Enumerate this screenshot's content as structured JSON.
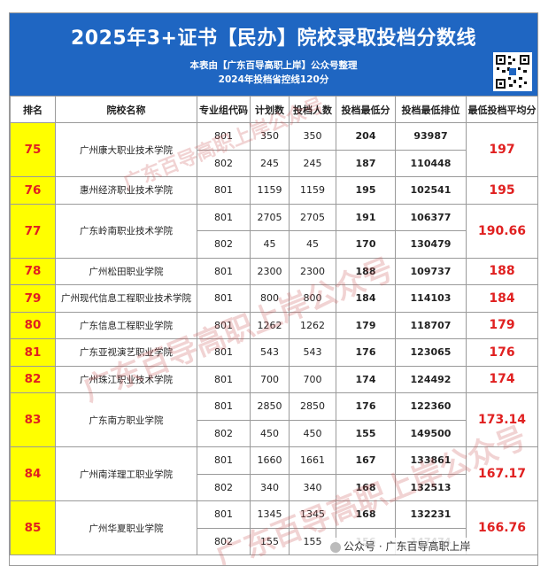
{
  "header": {
    "title": "2025年3+证书【民办】院校录取投档分数线",
    "subtitle": "本表由【广东百导高职上岸】公众号整理",
    "line2": "2024年投档省控线120分"
  },
  "columns": [
    "排名",
    "院校名称",
    "专业组代码",
    "计划数",
    "投档人数",
    "投档最低分",
    "投档最低排位",
    "最低投档平均分"
  ],
  "rows": [
    {
      "rank": "75",
      "school": "广州康大职业技术学院",
      "avg": "197",
      "groups": [
        {
          "code": "801",
          "plan": "350",
          "enrolled": "350",
          "min_score": "204",
          "min_rank": "93987"
        },
        {
          "code": "802",
          "plan": "245",
          "enrolled": "245",
          "min_score": "187",
          "min_rank": "110448"
        }
      ]
    },
    {
      "rank": "76",
      "school": "惠州经济职业技术学院",
      "avg": "195",
      "groups": [
        {
          "code": "801",
          "plan": "1159",
          "enrolled": "1159",
          "min_score": "195",
          "min_rank": "102541"
        }
      ]
    },
    {
      "rank": "77",
      "school": "广东岭南职业技术学院",
      "avg": "190.66",
      "groups": [
        {
          "code": "801",
          "plan": "2705",
          "enrolled": "2705",
          "min_score": "191",
          "min_rank": "106377"
        },
        {
          "code": "802",
          "plan": "45",
          "enrolled": "45",
          "min_score": "170",
          "min_rank": "130479"
        }
      ]
    },
    {
      "rank": "78",
      "school": "广州松田职业学院",
      "avg": "188",
      "groups": [
        {
          "code": "801",
          "plan": "2300",
          "enrolled": "2300",
          "min_score": "188",
          "min_rank": "109737"
        }
      ]
    },
    {
      "rank": "79",
      "school": "广州现代信息工程职业技术学院",
      "avg": "184",
      "groups": [
        {
          "code": "801",
          "plan": "800",
          "enrolled": "800",
          "min_score": "184",
          "min_rank": "114103"
        }
      ]
    },
    {
      "rank": "80",
      "school": "广东信息工程职业学院",
      "avg": "179",
      "groups": [
        {
          "code": "801",
          "plan": "1262",
          "enrolled": "1262",
          "min_score": "179",
          "min_rank": "118707"
        }
      ]
    },
    {
      "rank": "81",
      "school": "广东亚视演艺职业学院",
      "avg": "176",
      "groups": [
        {
          "code": "801",
          "plan": "543",
          "enrolled": "543",
          "min_score": "176",
          "min_rank": "123065"
        }
      ]
    },
    {
      "rank": "82",
      "school": "广州珠江职业技术学院",
      "avg": "174",
      "groups": [
        {
          "code": "801",
          "plan": "700",
          "enrolled": "700",
          "min_score": "174",
          "min_rank": "124492"
        }
      ]
    },
    {
      "rank": "83",
      "school": "广东南方职业学院",
      "avg": "173.14",
      "groups": [
        {
          "code": "801",
          "plan": "2850",
          "enrolled": "2850",
          "min_score": "176",
          "min_rank": "122360"
        },
        {
          "code": "802",
          "plan": "450",
          "enrolled": "450",
          "min_score": "155",
          "min_rank": "149500"
        }
      ]
    },
    {
      "rank": "84",
      "school": "广州南洋理工职业学院",
      "avg": "167.17",
      "groups": [
        {
          "code": "801",
          "plan": "1660",
          "enrolled": "1661",
          "min_score": "167",
          "min_rank": "133861"
        },
        {
          "code": "802",
          "plan": "340",
          "enrolled": "340",
          "min_score": "168",
          "min_rank": "132513"
        }
      ]
    },
    {
      "rank": "85",
      "school": "广州华夏职业学院",
      "avg": "166.76",
      "groups": [
        {
          "code": "801",
          "plan": "1345",
          "enrolled": "1345",
          "min_score": "168",
          "min_rank": "132231"
        },
        {
          "code": "802",
          "plan": "155",
          "enrolled": "155",
          "min_score": "156",
          "min_rank": "147474"
        }
      ]
    }
  ],
  "watermark": "广东百导高职上岸公众号",
  "footer": "公众号 · 广东百导高职上岸",
  "colors": {
    "header_bg": "#1f66c2",
    "rank_bg": "#ffff00",
    "accent_red": "#e02020"
  }
}
